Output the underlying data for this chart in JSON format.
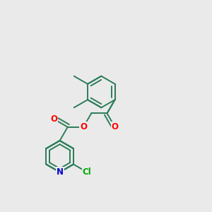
{
  "bg_color": "#eaeaea",
  "bond_color": "#2d7d5a",
  "atom_colors": {
    "O": "#ff0000",
    "N": "#0000cc",
    "Cl": "#00aa00",
    "C": "#2d7d5a"
  },
  "bond_width": 1.4,
  "font_size": 8.5,
  "fig_size": [
    3.0,
    3.0
  ],
  "dpi": 100,
  "bl": 0.075
}
